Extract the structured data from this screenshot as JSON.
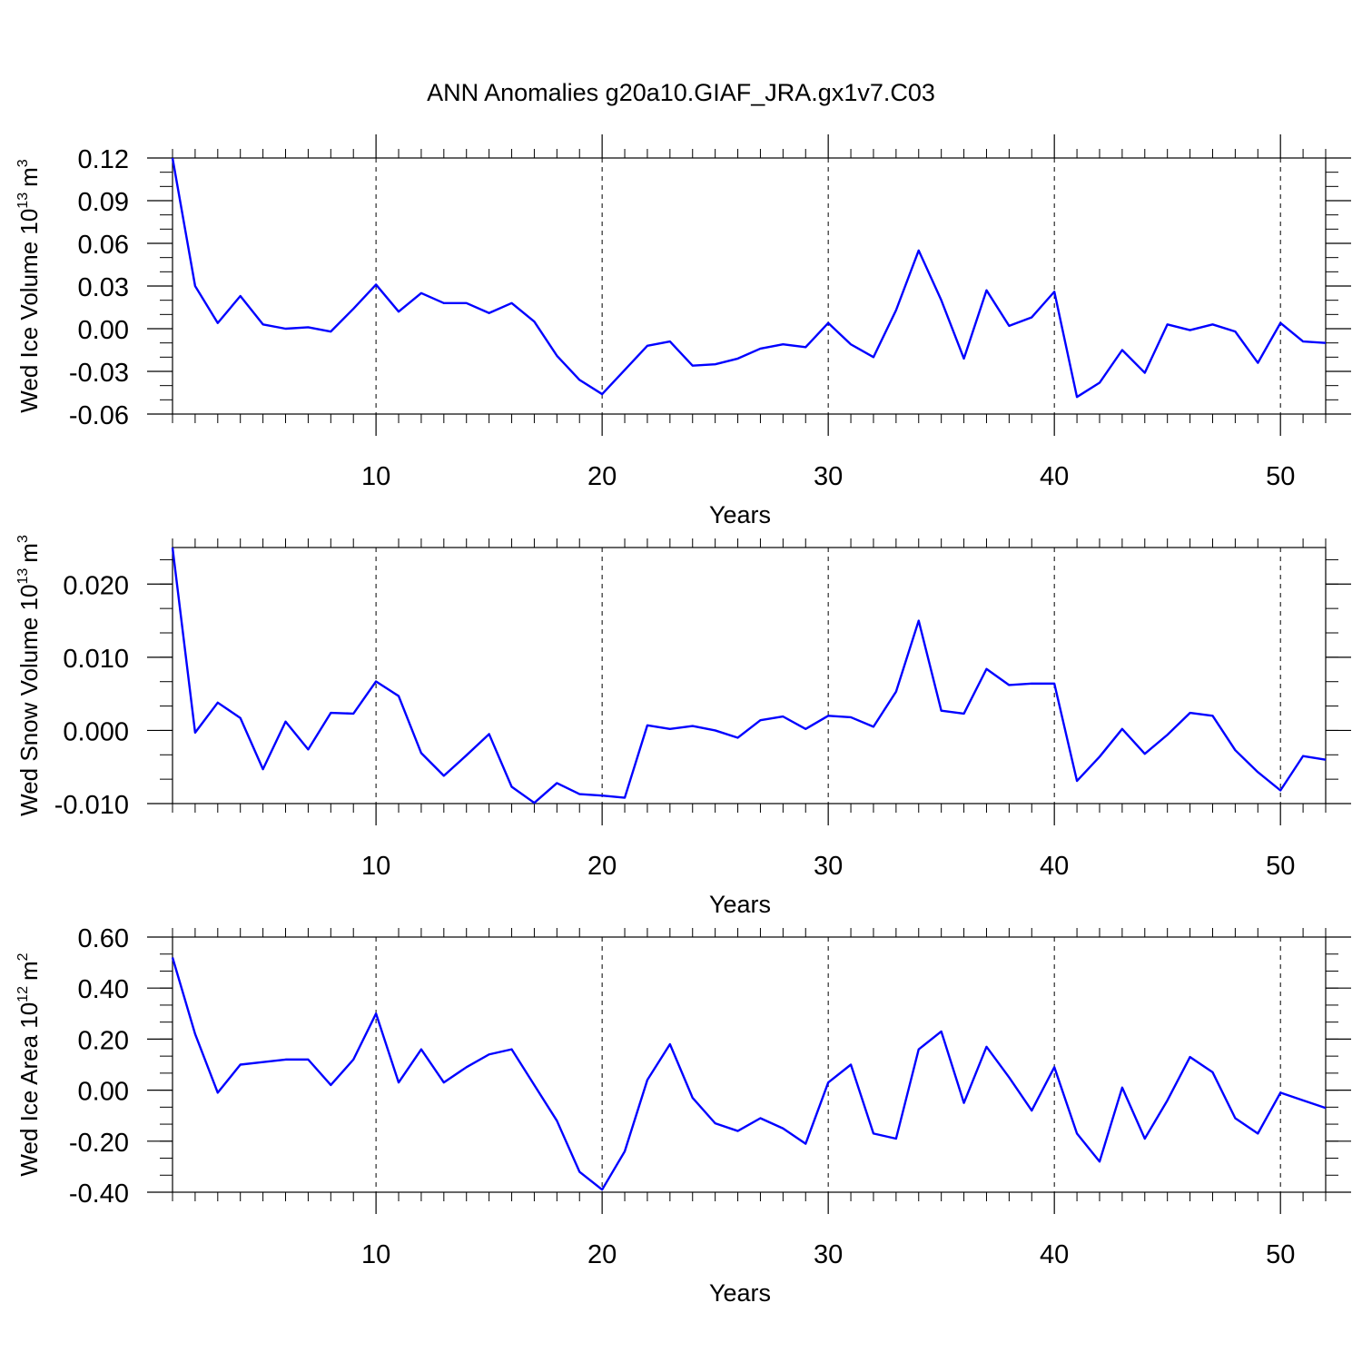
{
  "title": "ANN Anomalies g20a10.GIAF_JRA.gx1v7.C03",
  "line_color": "#0000ff",
  "chart_data": [
    {
      "type": "line",
      "ylabel": "Wed Ice Volume 10",
      "ylabel_exp": "13",
      "ylabel_unit": "m",
      "ylabel_unit_exp": "3",
      "xlabel": "Years",
      "xlim": [
        1,
        52
      ],
      "ylim": [
        -0.06,
        0.12
      ],
      "yticks": [
        -0.06,
        -0.03,
        0.0,
        0.03,
        0.06,
        0.09,
        0.12
      ],
      "ytick_labels": [
        "-0.06",
        "-0.03",
        "0.00",
        "0.03",
        "0.06",
        "0.09",
        "0.12"
      ],
      "xticks": [
        10,
        20,
        30,
        40,
        50
      ],
      "xtick_labels": [
        "10",
        "20",
        "30",
        "40",
        "50"
      ],
      "grid": "vertical dashed at major x ticks",
      "series": [
        {
          "x": [
            1,
            2,
            3,
            4,
            5,
            6,
            7,
            8,
            9,
            10,
            11,
            12,
            13,
            14,
            15,
            16,
            17,
            18,
            19,
            20,
            21,
            22,
            23,
            24,
            25,
            26,
            27,
            28,
            29,
            30,
            31,
            32,
            33,
            34,
            35,
            36,
            37,
            38,
            39,
            40,
            41,
            42,
            43,
            44,
            45,
            46,
            47,
            48,
            49,
            50,
            51,
            52
          ],
          "values": [
            0.12,
            0.03,
            0.004,
            0.023,
            0.003,
            0.0,
            0.001,
            -0.002,
            0.014,
            0.031,
            0.012,
            0.025,
            0.018,
            0.018,
            0.011,
            0.018,
            0.005,
            -0.019,
            -0.036,
            -0.046,
            -0.029,
            -0.012,
            -0.009,
            -0.026,
            -0.025,
            -0.021,
            -0.014,
            -0.011,
            -0.013,
            0.004,
            -0.011,
            -0.02,
            0.013,
            0.055,
            0.02,
            -0.021,
            0.027,
            0.002,
            0.008,
            0.026,
            -0.048,
            -0.038,
            -0.015,
            -0.031,
            0.003,
            -0.001,
            0.003,
            -0.002,
            -0.024,
            0.004,
            -0.009,
            -0.01
          ]
        }
      ]
    },
    {
      "type": "line",
      "ylabel": "Wed Snow Volume 10",
      "ylabel_exp": "13",
      "ylabel_unit": "m",
      "ylabel_unit_exp": "3",
      "xlabel": "Years",
      "xlim": [
        1,
        52
      ],
      "ylim": [
        -0.01,
        0.025
      ],
      "yticks": [
        -0.01,
        0.0,
        0.01,
        0.02
      ],
      "ytick_labels": [
        "-0.010",
        "0.000",
        "0.010",
        "0.020"
      ],
      "xticks": [
        10,
        20,
        30,
        40,
        50
      ],
      "xtick_labels": [
        "10",
        "20",
        "30",
        "40",
        "50"
      ],
      "grid": "vertical dashed at major x ticks",
      "series": [
        {
          "x": [
            1,
            2,
            3,
            4,
            5,
            6,
            7,
            8,
            9,
            10,
            11,
            12,
            13,
            14,
            15,
            16,
            17,
            18,
            19,
            20,
            21,
            22,
            23,
            24,
            25,
            26,
            27,
            28,
            29,
            30,
            31,
            32,
            33,
            34,
            35,
            36,
            37,
            38,
            39,
            40,
            41,
            42,
            43,
            44,
            45,
            46,
            47,
            48,
            49,
            50,
            51,
            52
          ],
          "values": [
            0.025,
            -0.0003,
            0.0038,
            0.0017,
            -0.0053,
            0.0012,
            -0.0026,
            0.0024,
            0.0023,
            0.0067,
            0.0047,
            -0.0031,
            -0.0062,
            -0.0034,
            -0.0005,
            -0.0077,
            -0.0099,
            -0.0072,
            -0.0087,
            -0.0089,
            -0.0092,
            0.0007,
            0.0002,
            0.0006,
            0.0,
            -0.001,
            0.0014,
            0.0019,
            0.0002,
            0.002,
            0.0018,
            0.0005,
            0.0053,
            0.015,
            0.0027,
            0.0023,
            0.0084,
            0.0062,
            0.0064,
            0.0064,
            -0.0069,
            -0.0036,
            0.0002,
            -0.0032,
            -0.0006,
            0.0024,
            0.002,
            -0.0027,
            -0.0057,
            -0.0082,
            -0.0035,
            -0.004
          ]
        }
      ]
    },
    {
      "type": "line",
      "ylabel": "Wed Ice Area 10",
      "ylabel_exp": "12",
      "ylabel_unit": "m",
      "ylabel_unit_exp": "2",
      "xlabel": "Years",
      "xlim": [
        1,
        52
      ],
      "ylim": [
        -0.4,
        0.6
      ],
      "yticks": [
        -0.4,
        -0.2,
        0.0,
        0.2,
        0.4,
        0.6
      ],
      "ytick_labels": [
        "-0.40",
        "-0.20",
        "0.00",
        "0.20",
        "0.40",
        "0.60"
      ],
      "xticks": [
        10,
        20,
        30,
        40,
        50
      ],
      "xtick_labels": [
        "10",
        "20",
        "30",
        "40",
        "50"
      ],
      "grid": "vertical dashed at major x ticks",
      "series": [
        {
          "x": [
            1,
            2,
            3,
            4,
            5,
            6,
            7,
            8,
            9,
            10,
            11,
            12,
            13,
            14,
            15,
            16,
            17,
            18,
            19,
            20,
            21,
            22,
            23,
            24,
            25,
            26,
            27,
            28,
            29,
            30,
            31,
            32,
            33,
            34,
            35,
            36,
            37,
            38,
            39,
            40,
            41,
            42,
            43,
            44,
            45,
            46,
            47,
            48,
            49,
            50,
            51,
            52
          ],
          "values": [
            0.52,
            0.22,
            -0.01,
            0.1,
            0.11,
            0.12,
            0.12,
            0.02,
            0.12,
            0.3,
            0.03,
            0.16,
            0.03,
            0.09,
            0.14,
            0.16,
            0.02,
            -0.12,
            -0.32,
            -0.39,
            -0.24,
            0.04,
            0.18,
            -0.03,
            -0.13,
            -0.16,
            -0.11,
            -0.15,
            -0.21,
            0.03,
            0.1,
            -0.17,
            -0.19,
            0.16,
            0.23,
            -0.05,
            0.17,
            0.05,
            -0.08,
            0.09,
            -0.17,
            -0.28,
            0.01,
            -0.19,
            -0.04,
            0.13,
            0.07,
            -0.11,
            -0.17,
            -0.01,
            -0.04,
            -0.07
          ]
        }
      ]
    }
  ]
}
